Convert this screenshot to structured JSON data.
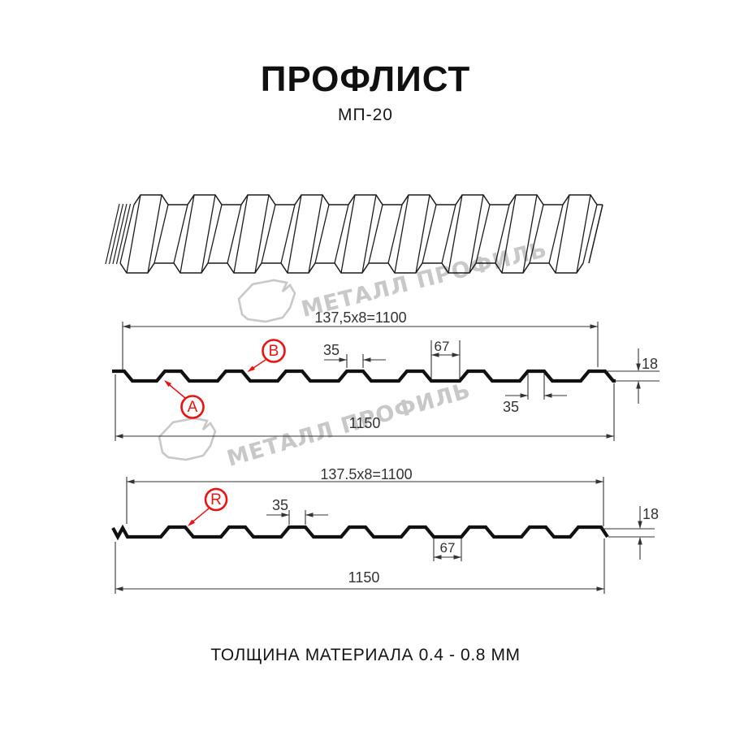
{
  "header": {
    "title": "ПРОФЛИСТ",
    "subtitle": "МП-20"
  },
  "footer": {
    "text": "ТОЛЩИНА МАТЕРИАЛА 0.4 - 0.8 ММ"
  },
  "watermark": {
    "brand_text": "МЕТАЛЛ ПРОФИЛЬ"
  },
  "section_top": {
    "coverage_width": "137,5x8=1100",
    "rib_top_width": "35",
    "valley_width": "67",
    "profile_height": "18",
    "rib_top_width_2": "35",
    "full_width": "1150",
    "marker_a": "A",
    "marker_b": "B"
  },
  "section_bottom": {
    "coverage_width": "137.5x8=1100",
    "rib_top_width": "35",
    "valley_width": "67",
    "profile_height": "18",
    "full_width": "1150",
    "marker_r": "R"
  },
  "colors": {
    "accent_red": "#ee1111",
    "watermark_gray": "#c8c8c8",
    "line_dark": "#1b1b1b",
    "profile_black": "#111111",
    "dim_gray": "#333333"
  }
}
